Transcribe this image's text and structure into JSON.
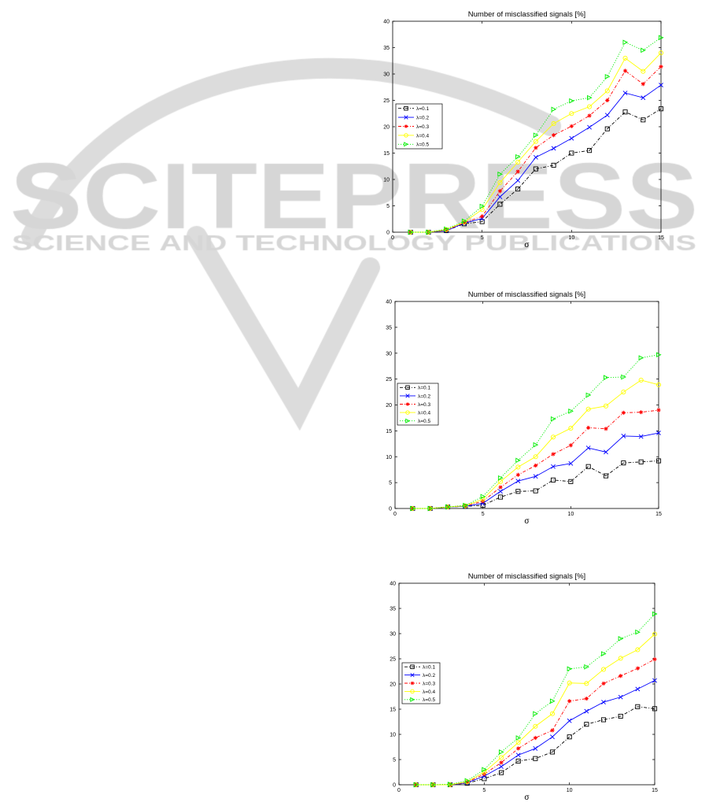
{
  "watermark": {
    "brand": "SCITEPRESS",
    "tagline": "SCIENCE AND TECHNOLOGY PUBLICATIONS",
    "color": "#d9d9d9"
  },
  "chart_data": [
    {
      "type": "line",
      "title": "Number of misclassified signals [%]",
      "xlabel": "σ",
      "ylabel": "",
      "xlim": [
        0,
        15
      ],
      "ylim": [
        0,
        40
      ],
      "xticks": [
        0,
        5,
        10,
        15
      ],
      "yticks": [
        0,
        5,
        10,
        15,
        20,
        25,
        30,
        35,
        40
      ],
      "grid": false,
      "legend_position": "center-left",
      "x": [
        1,
        2,
        3,
        4,
        5,
        6,
        7,
        8,
        9,
        10,
        11,
        12,
        13,
        14,
        15
      ],
      "series": [
        {
          "name": "λ=0.1",
          "color": "#000000",
          "line": "dashdot",
          "marker": "square",
          "values": [
            0,
            0,
            0.3,
            1.6,
            2,
            5.3,
            8.2,
            12,
            12.7,
            15,
            15.5,
            19.6,
            22.8,
            21.3,
            23.4
          ]
        },
        {
          "name": "λ=0.2",
          "color": "#0000ff",
          "line": "solid",
          "marker": "x",
          "values": [
            0,
            0,
            0.3,
            1.7,
            2.6,
            6.7,
            9.8,
            14.2,
            15.9,
            17.8,
            19.9,
            22.2,
            26.4,
            25.5,
            27.9
          ]
        },
        {
          "name": "λ=0.3",
          "color": "#ff0000",
          "line": "dashdot",
          "marker": "star",
          "values": [
            0,
            0,
            0.4,
            1.8,
            3,
            7.8,
            11.5,
            16,
            18.4,
            20.1,
            22.1,
            25,
            30.6,
            28.1,
            31.4
          ]
        },
        {
          "name": "λ=0.4",
          "color": "#ffff00",
          "line": "solid",
          "marker": "circle",
          "values": [
            0,
            0,
            0.5,
            1.9,
            4.3,
            9.4,
            13.3,
            17.2,
            20.6,
            22.5,
            23.8,
            26.8,
            33,
            30.5,
            34
          ]
        },
        {
          "name": "λ=0.5",
          "color": "#00ee00",
          "line": "dotted",
          "marker": "triangle-right",
          "values": [
            0,
            0,
            0.6,
            2.1,
            4.9,
            11,
            14.3,
            18.4,
            23.3,
            24.9,
            25.5,
            29.5,
            36,
            34.5,
            36.9
          ]
        }
      ]
    },
    {
      "type": "line",
      "title": "Number of misclassified signals [%]",
      "xlabel": "σ",
      "ylabel": "",
      "xlim": [
        0,
        15
      ],
      "ylim": [
        0,
        40
      ],
      "xticks": [
        0,
        5,
        10,
        15
      ],
      "yticks": [
        0,
        5,
        10,
        15,
        20,
        25,
        30,
        35,
        40
      ],
      "grid": false,
      "legend_position": "center-left",
      "x": [
        1,
        2,
        3,
        4,
        5,
        6,
        7,
        8,
        9,
        10,
        11,
        12,
        13,
        14,
        15
      ],
      "series": [
        {
          "name": "λ=0.1",
          "color": "#000000",
          "line": "dashdot",
          "marker": "square",
          "values": [
            0,
            0,
            0.3,
            0.4,
            0.6,
            2.2,
            3.3,
            3.4,
            5.5,
            5.2,
            8.1,
            6.3,
            8.8,
            9,
            9.2
          ]
        },
        {
          "name": "λ=0.2",
          "color": "#0000ff",
          "line": "solid",
          "marker": "x",
          "values": [
            0,
            0,
            0.3,
            0.4,
            1,
            3.3,
            5.3,
            6.2,
            8.1,
            8.7,
            11.7,
            10.9,
            14,
            13.9,
            14.6
          ]
        },
        {
          "name": "λ=0.3",
          "color": "#ff0000",
          "line": "dashdot",
          "marker": "star",
          "values": [
            0,
            0,
            0.3,
            0.5,
            1.4,
            4.1,
            6.5,
            8.3,
            10.5,
            12.2,
            15.6,
            15.4,
            18.5,
            18.6,
            19
          ]
        },
        {
          "name": "λ=0.4",
          "color": "#ffff00",
          "line": "solid",
          "marker": "circle",
          "values": [
            0,
            0,
            0.3,
            0.5,
            1.8,
            5.2,
            8,
            10,
            13.8,
            15.5,
            19.2,
            19.8,
            22.5,
            24.8,
            23.9
          ]
        },
        {
          "name": "λ=0.5",
          "color": "#00ee00",
          "line": "dotted",
          "marker": "triangle-right",
          "values": [
            0,
            0,
            0.3,
            0.6,
            2.3,
            5.9,
            9.3,
            12.3,
            17.3,
            18.8,
            21.9,
            25.3,
            25.4,
            29.1,
            29.7
          ]
        }
      ]
    },
    {
      "type": "line",
      "title": "Number of misclassified signals [%]",
      "xlabel": "σ",
      "ylabel": "",
      "xlim": [
        0,
        15
      ],
      "ylim": [
        0,
        40
      ],
      "xticks": [
        0,
        5,
        10,
        15
      ],
      "yticks": [
        0,
        5,
        10,
        15,
        20,
        25,
        30,
        35,
        40
      ],
      "grid": false,
      "legend_position": "center-left",
      "x": [
        1,
        2,
        3,
        4,
        5,
        6,
        7,
        8,
        9,
        10,
        11,
        12,
        13,
        14,
        15
      ],
      "series": [
        {
          "name": "λ=0.1",
          "color": "#000000",
          "line": "dashdot",
          "marker": "square",
          "values": [
            0,
            0,
            0,
            0.3,
            1.2,
            2.4,
            4.7,
            5.2,
            6.5,
            9.5,
            12,
            12.9,
            13.6,
            15.5,
            15.1
          ]
        },
        {
          "name": "λ=0.2",
          "color": "#0000ff",
          "line": "solid",
          "marker": "x",
          "values": [
            0,
            0,
            0,
            0.4,
            1.7,
            3.6,
            5.9,
            7.2,
            9.5,
            12.7,
            14.6,
            16.4,
            17.4,
            19,
            20.7
          ]
        },
        {
          "name": "λ=0.3",
          "color": "#ff0000",
          "line": "dashdot",
          "marker": "star",
          "values": [
            0,
            0,
            0,
            0.5,
            2.1,
            4.4,
            7.2,
            9.3,
            10.8,
            16.6,
            17.1,
            20.1,
            21.6,
            23.1,
            24.9
          ]
        },
        {
          "name": "λ=0.4",
          "color": "#ffff00",
          "line": "solid",
          "marker": "circle",
          "values": [
            0,
            0,
            0,
            0.6,
            2.5,
            5.4,
            8.4,
            11.6,
            14.1,
            20.2,
            20.1,
            22.9,
            25.1,
            26.8,
            29.9
          ]
        },
        {
          "name": "λ=0.5",
          "color": "#00ee00",
          "line": "dotted",
          "marker": "triangle-right",
          "values": [
            0,
            0,
            0.1,
            0.8,
            3,
            6.5,
            9.3,
            14.1,
            16.6,
            23,
            23.4,
            26,
            29,
            30.3,
            33.9
          ]
        }
      ]
    }
  ]
}
